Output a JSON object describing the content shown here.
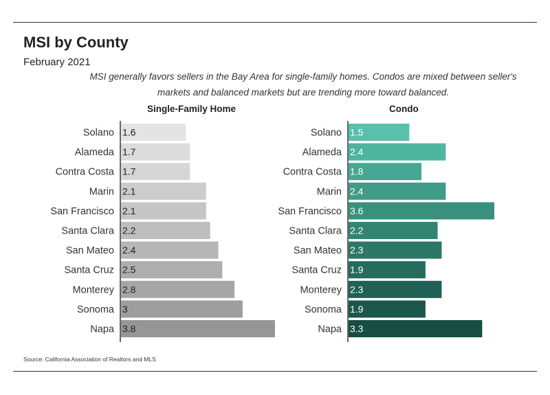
{
  "title": "MSI by County",
  "subtitle": "February 2021",
  "note": "MSI generally favors sellers in the Bay Area for single-family homes. Condos are mixed between seller's markets and balanced markets but are trending more toward balanced.",
  "source": "Source:  California Association of Realtors and MLS",
  "chart_data": [
    {
      "type": "bar",
      "orientation": "horizontal",
      "title": "Single-Family Home",
      "categories": [
        "Solano",
        "Alameda",
        "Contra Costa",
        "Marin",
        "San Francisco",
        "Santa Clara",
        "San Mateo",
        "Santa Cruz",
        "Monterey",
        "Sonoma",
        "Napa"
      ],
      "values": [
        1.6,
        1.7,
        1.7,
        2.1,
        2.1,
        2.2,
        2.4,
        2.5,
        2.8,
        3,
        3.8
      ],
      "value_labels": [
        "1.6",
        "1.7",
        "1.7",
        "2.1",
        "2.1",
        "2.2",
        "2.4",
        "2.5",
        "2.8",
        "3",
        "3.8"
      ],
      "xlim": [
        0,
        3.8
      ],
      "colors": [
        "#e4e4e4",
        "#dcdcdc",
        "#d6d6d6",
        "#cccccc",
        "#c6c6c6",
        "#bebebe",
        "#b6b6b6",
        "#aeaeae",
        "#a6a6a6",
        "#9e9e9e",
        "#969696"
      ],
      "label_color": "#222222",
      "grid": false,
      "legend": "none"
    },
    {
      "type": "bar",
      "orientation": "horizontal",
      "title": "Condo",
      "categories": [
        "Solano",
        "Alameda",
        "Contra Costa",
        "Marin",
        "San Francisco",
        "Santa Clara",
        "San Mateo",
        "Santa Cruz",
        "Monterey",
        "Sonoma",
        "Napa"
      ],
      "values": [
        1.5,
        2.4,
        1.8,
        2.4,
        3.6,
        2.2,
        2.3,
        1.9,
        2.3,
        1.9,
        3.3
      ],
      "value_labels": [
        "1.5",
        "2.4",
        "1.8",
        "2.4",
        "3.6",
        "2.2",
        "2.3",
        "1.9",
        "2.3",
        "1.9",
        "3.3"
      ],
      "xlim": [
        0,
        3.6
      ],
      "colors": [
        "#57c1ab",
        "#4eb59f",
        "#46a893",
        "#3f9c88",
        "#39907d",
        "#328473",
        "#2c7868",
        "#266c5e",
        "#216155",
        "#1c574b",
        "#184d42"
      ],
      "label_color": "#ffffff",
      "grid": false,
      "legend": "none"
    }
  ]
}
